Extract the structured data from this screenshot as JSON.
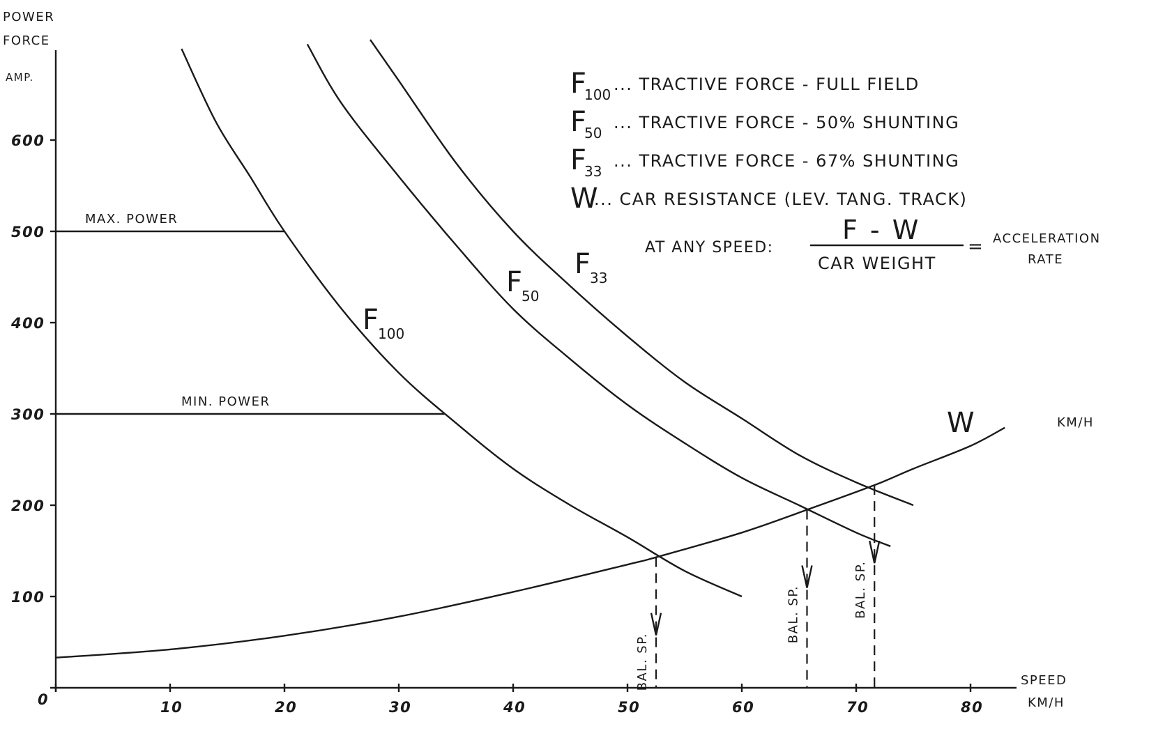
{
  "chart_data": {
    "type": "line",
    "ylabel": [
      "POWER",
      "FORCE",
      "AMP."
    ],
    "xlabel": [
      "SPEED",
      "KM/H"
    ],
    "xlim": [
      0,
      84
    ],
    "ylim": [
      0,
      700
    ],
    "x_ticks": [
      0,
      10,
      20,
      30,
      40,
      50,
      60,
      70,
      80
    ],
    "y_ticks": [
      100,
      200,
      300,
      400,
      500,
      600
    ],
    "x_tick_labels": [
      "0",
      "10",
      "20",
      "30",
      "40",
      "50",
      "60",
      "70",
      "80"
    ],
    "y_tick_labels": [
      "100",
      "200",
      "300",
      "400",
      "500",
      "600"
    ],
    "series": [
      {
        "name": "F100",
        "label_main": "F",
        "label_sub": "100",
        "x": [
          11,
          14,
          17,
          20,
          25,
          30,
          35,
          40,
          45,
          50,
          55,
          60
        ],
        "y": [
          700,
          620,
          560,
          500,
          415,
          345,
          290,
          240,
          200,
          165,
          128,
          100
        ]
      },
      {
        "name": "F50",
        "label_main": "F",
        "label_sub": "50",
        "x": [
          22,
          25,
          30,
          35,
          40,
          45,
          50,
          55,
          60,
          65,
          70,
          73
        ],
        "y": [
          705,
          640,
          560,
          485,
          415,
          360,
          310,
          268,
          230,
          200,
          170,
          155
        ]
      },
      {
        "name": "F33",
        "label_main": "F",
        "label_sub": "33",
        "x": [
          27.5,
          30,
          35,
          40,
          45,
          50,
          55,
          60,
          65,
          70,
          75
        ],
        "y": [
          710,
          665,
          575,
          500,
          440,
          385,
          335,
          295,
          255,
          225,
          200
        ]
      },
      {
        "name": "W",
        "label_main": "W",
        "label_sub": "",
        "x": [
          0,
          10,
          20,
          30,
          40,
          50,
          52.5,
          60,
          65.7,
          71.6,
          75,
          80,
          83
        ],
        "y": [
          33,
          42,
          57,
          78,
          105,
          135,
          143,
          170,
          195,
          222,
          240,
          265,
          285
        ]
      }
    ],
    "reference_lines": [
      {
        "label": "MAX. POWER",
        "y": 500,
        "x_end": 20
      },
      {
        "label": "MIN. POWER",
        "y": 300,
        "x_end": 34
      }
    ],
    "balancing_speeds": [
      {
        "label": "BAL. SP.",
        "x": 52.5,
        "y": 143
      },
      {
        "label": "BAL. SP.",
        "x": 65.7,
        "y": 195
      },
      {
        "label": "BAL. SP.",
        "x": 71.6,
        "y": 222
      }
    ],
    "legend": [
      {
        "main": "F",
        "sub": "100",
        "text": "... TRACTIVE FORCE - FULL FIELD"
      },
      {
        "main": "F",
        "sub": "50",
        "text": "... TRACTIVE FORCE - 50% SHUNTING"
      },
      {
        "main": "F",
        "sub": "33",
        "text": "... TRACTIVE FORCE - 67% SHUNTING"
      },
      {
        "main": "W",
        "sub": "",
        "text": "... CAR RESISTANCE (LEV. TANG. TRACK)"
      }
    ],
    "formula": {
      "prefix": "AT ANY SPEED:",
      "numerator": "F - W",
      "denominator": "CAR WEIGHT",
      "equals": "=",
      "result_line1": "ACCELERATION",
      "result_line2": "RATE"
    },
    "annotations": [
      "KM/H"
    ],
    "grid": false,
    "legend_placement": "top-right"
  }
}
